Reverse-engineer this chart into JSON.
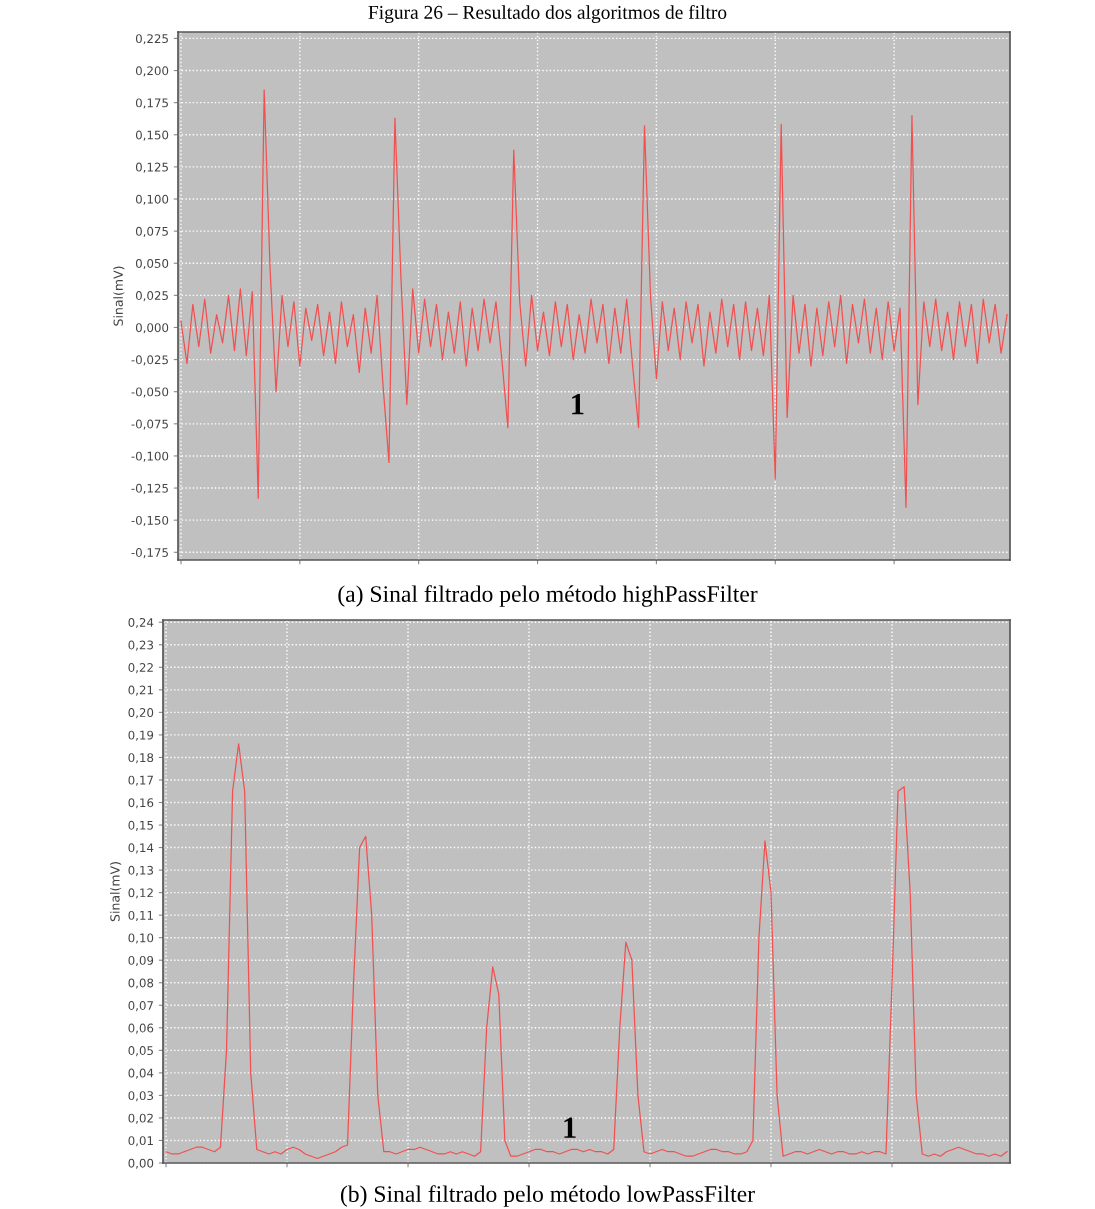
{
  "chart_data": [
    {
      "type": "line",
      "title": "Figura 26 – Resultado dos algoritmos de filtro",
      "ylabel": "Sinal(mV)",
      "grid": true,
      "tick_labels": "y",
      "line_style": "solid",
      "annotations": [
        "1",
        "(a) Sinal filtrado pelo método highPassFilter"
      ],
      "ylim": [
        -0.181,
        0.23
      ],
      "yticks": [
        {
          "value": 0.225,
          "label": "0,225"
        },
        {
          "value": 0.2,
          "label": "0,200"
        },
        {
          "value": 0.175,
          "label": "0,175"
        },
        {
          "value": 0.15,
          "label": "0,150"
        },
        {
          "value": 0.125,
          "label": "0,125"
        },
        {
          "value": 0.1,
          "label": "0,100"
        },
        {
          "value": 0.075,
          "label": "0,075"
        },
        {
          "value": 0.05,
          "label": "0,050"
        },
        {
          "value": 0.025,
          "label": "0,025"
        },
        {
          "value": 0,
          "label": "0,000"
        },
        {
          "value": -0.025,
          "label": "-0,025"
        },
        {
          "value": -0.05,
          "label": "-0,050"
        },
        {
          "value": -0.075,
          "label": "-0,075"
        },
        {
          "value": -0.1,
          "label": "-0,100"
        },
        {
          "value": -0.125,
          "label": "-0,125"
        },
        {
          "value": -0.15,
          "label": "-0,150"
        },
        {
          "value": -0.175,
          "label": "-0,175"
        }
      ],
      "categories": [
        null,
        null,
        null,
        null,
        null,
        null,
        null,
        null,
        null,
        null,
        null,
        null,
        null,
        null,
        null,
        null,
        null,
        null,
        null,
        null,
        null,
        null,
        null,
        null,
        null,
        null,
        null,
        null,
        null,
        null,
        null,
        null,
        null,
        null,
        null,
        null,
        null,
        null,
        null,
        null,
        null,
        null,
        null,
        null,
        null,
        null,
        null,
        null,
        null,
        null,
        null,
        null,
        null,
        null,
        null,
        null,
        null,
        null,
        null,
        null,
        null,
        null,
        null,
        null,
        null,
        null,
        null,
        null,
        null,
        null,
        null,
        null,
        null,
        null,
        null,
        null,
        null,
        null,
        null,
        null,
        null,
        null,
        null,
        null,
        null,
        null,
        null,
        null,
        null,
        null,
        null,
        null,
        null,
        null,
        null,
        null,
        null,
        null,
        null,
        null,
        null,
        null,
        null,
        null,
        null,
        null,
        null,
        null,
        null,
        null,
        null,
        null,
        null,
        null,
        null,
        null,
        null,
        null,
        null,
        null,
        null,
        null,
        null,
        null,
        null,
        null,
        null,
        null,
        null,
        null,
        null,
        null,
        null,
        null,
        null,
        null,
        null,
        null,
        null,
        null
      ],
      "series": [
        {
          "color": "#f25050",
          "values": [
            0.005,
            -0.028,
            0.018,
            -0.015,
            0.022,
            -0.02,
            0.01,
            -0.012,
            0.025,
            -0.018,
            0.03,
            -0.022,
            0.028,
            -0.133,
            0.185,
            0.045,
            -0.05,
            0.025,
            -0.015,
            0.02,
            -0.03,
            0.015,
            -0.01,
            0.018,
            -0.022,
            0.012,
            -0.028,
            0.02,
            -0.015,
            0.01,
            -0.035,
            0.015,
            -0.02,
            0.025,
            -0.045,
            -0.105,
            0.163,
            0.04,
            -0.06,
            0.03,
            -0.02,
            0.022,
            -0.015,
            0.018,
            -0.025,
            0.012,
            -0.02,
            0.02,
            -0.03,
            0.015,
            -0.018,
            0.022,
            -0.012,
            0.02,
            -0.025,
            -0.078,
            0.138,
            0.02,
            -0.03,
            0.025,
            -0.018,
            0.012,
            -0.022,
            0.02,
            -0.015,
            0.018,
            -0.025,
            0.01,
            -0.02,
            0.022,
            -0.012,
            0.018,
            -0.028,
            0.015,
            -0.02,
            0.022,
            -0.03,
            -0.078,
            0.157,
            0.025,
            -0.04,
            0.02,
            -0.018,
            0.015,
            -0.025,
            0.02,
            -0.012,
            0.018,
            -0.03,
            0.012,
            -0.02,
            0.022,
            -0.015,
            0.018,
            -0.025,
            0.02,
            -0.018,
            0.015,
            -0.022,
            0.025,
            -0.118,
            0.158,
            -0.07,
            0.025,
            -0.02,
            0.018,
            -0.03,
            0.015,
            -0.022,
            0.02,
            -0.015,
            0.025,
            -0.028,
            0.018,
            -0.012,
            0.022,
            -0.02,
            0.015,
            -0.025,
            0.02,
            -0.018,
            0.015,
            -0.14,
            0.165,
            -0.06,
            0.02,
            -0.015,
            0.022,
            -0.018,
            0.012,
            -0.025,
            0.02,
            -0.015,
            0.018,
            -0.028,
            0.022,
            -0.012,
            0.018,
            -0.02,
            0.01
          ]
        }
      ]
    },
    {
      "type": "line",
      "ylabel": "Sinal(mV)",
      "grid": true,
      "tick_labels": "y",
      "line_style": "solid",
      "annotations": [
        "1",
        "(b) Sinal filtrado pelo método lowPassFilter"
      ],
      "ylim": [
        0,
        0.241
      ],
      "yticks": [
        {
          "value": 0.24,
          "label": "0,24"
        },
        {
          "value": 0.23,
          "label": "0,23"
        },
        {
          "value": 0.22,
          "label": "0,22"
        },
        {
          "value": 0.21,
          "label": "0,21"
        },
        {
          "value": 0.2,
          "label": "0,20"
        },
        {
          "value": 0.19,
          "label": "0,19"
        },
        {
          "value": 0.18,
          "label": "0,18"
        },
        {
          "value": 0.17,
          "label": "0,17"
        },
        {
          "value": 0.16,
          "label": "0,16"
        },
        {
          "value": 0.15,
          "label": "0,15"
        },
        {
          "value": 0.14,
          "label": "0,14"
        },
        {
          "value": 0.13,
          "label": "0,13"
        },
        {
          "value": 0.12,
          "label": "0,12"
        },
        {
          "value": 0.11,
          "label": "0,11"
        },
        {
          "value": 0.1,
          "label": "0,10"
        },
        {
          "value": 0.09,
          "label": "0,09"
        },
        {
          "value": 0.08,
          "label": "0,08"
        },
        {
          "value": 0.07,
          "label": "0,07"
        },
        {
          "value": 0.06,
          "label": "0,06"
        },
        {
          "value": 0.05,
          "label": "0,05"
        },
        {
          "value": 0.04,
          "label": "0,04"
        },
        {
          "value": 0.03,
          "label": "0,03"
        },
        {
          "value": 0.02,
          "label": "0,02"
        },
        {
          "value": 0.01,
          "label": "0,01"
        },
        {
          "value": 0,
          "label": "0,00"
        }
      ],
      "categories": [
        null,
        null,
        null,
        null,
        null,
        null,
        null,
        null,
        null,
        null,
        null,
        null,
        null,
        null,
        null,
        null,
        null,
        null,
        null,
        null,
        null,
        null,
        null,
        null,
        null,
        null,
        null,
        null,
        null,
        null,
        null,
        null,
        null,
        null,
        null,
        null,
        null,
        null,
        null,
        null,
        null,
        null,
        null,
        null,
        null,
        null,
        null,
        null,
        null,
        null,
        null,
        null,
        null,
        null,
        null,
        null,
        null,
        null,
        null,
        null,
        null,
        null,
        null,
        null,
        null,
        null,
        null,
        null,
        null,
        null,
        null,
        null,
        null,
        null,
        null,
        null,
        null,
        null,
        null,
        null,
        null,
        null,
        null,
        null,
        null,
        null,
        null,
        null,
        null,
        null,
        null,
        null,
        null,
        null,
        null,
        null,
        null,
        null,
        null,
        null,
        null,
        null,
        null,
        null,
        null,
        null,
        null,
        null,
        null,
        null,
        null,
        null,
        null,
        null,
        null,
        null,
        null,
        null,
        null,
        null,
        null,
        null,
        null,
        null,
        null,
        null,
        null,
        null,
        null,
        null,
        null,
        null,
        null,
        null,
        null,
        null,
        null,
        null,
        null,
        null
      ],
      "series": [
        {
          "color": "#f25050",
          "values": [
            0.005,
            0.004,
            0.004,
            0.005,
            0.006,
            0.007,
            0.007,
            0.006,
            0.005,
            0.007,
            0.05,
            0.165,
            0.186,
            0.165,
            0.04,
            0.006,
            0.005,
            0.004,
            0.005,
            0.004,
            0.006,
            0.007,
            0.006,
            0.004,
            0.003,
            0.002,
            0.003,
            0.004,
            0.005,
            0.007,
            0.008,
            0.08,
            0.14,
            0.145,
            0.11,
            0.03,
            0.005,
            0.005,
            0.004,
            0.005,
            0.006,
            0.006,
            0.007,
            0.006,
            0.005,
            0.004,
            0.004,
            0.005,
            0.004,
            0.005,
            0.004,
            0.003,
            0.005,
            0.06,
            0.087,
            0.075,
            0.01,
            0.003,
            0.003,
            0.004,
            0.005,
            0.006,
            0.006,
            0.005,
            0.005,
            0.004,
            0.005,
            0.006,
            0.006,
            0.005,
            0.006,
            0.005,
            0.005,
            0.004,
            0.006,
            0.06,
            0.098,
            0.09,
            0.03,
            0.005,
            0.004,
            0.005,
            0.006,
            0.005,
            0.005,
            0.004,
            0.003,
            0.003,
            0.004,
            0.005,
            0.006,
            0.006,
            0.005,
            0.005,
            0.004,
            0.004,
            0.005,
            0.01,
            0.1,
            0.143,
            0.12,
            0.03,
            0.003,
            0.004,
            0.005,
            0.005,
            0.004,
            0.005,
            0.006,
            0.005,
            0.004,
            0.005,
            0.005,
            0.004,
            0.004,
            0.005,
            0.004,
            0.005,
            0.005,
            0.004,
            0.08,
            0.165,
            0.167,
            0.12,
            0.03,
            0.004,
            0.003,
            0.004,
            0.003,
            0.005,
            0.006,
            0.007,
            0.006,
            0.005,
            0.004,
            0.004,
            0.003,
            0.004,
            0.003,
            0.005
          ]
        }
      ]
    }
  ]
}
